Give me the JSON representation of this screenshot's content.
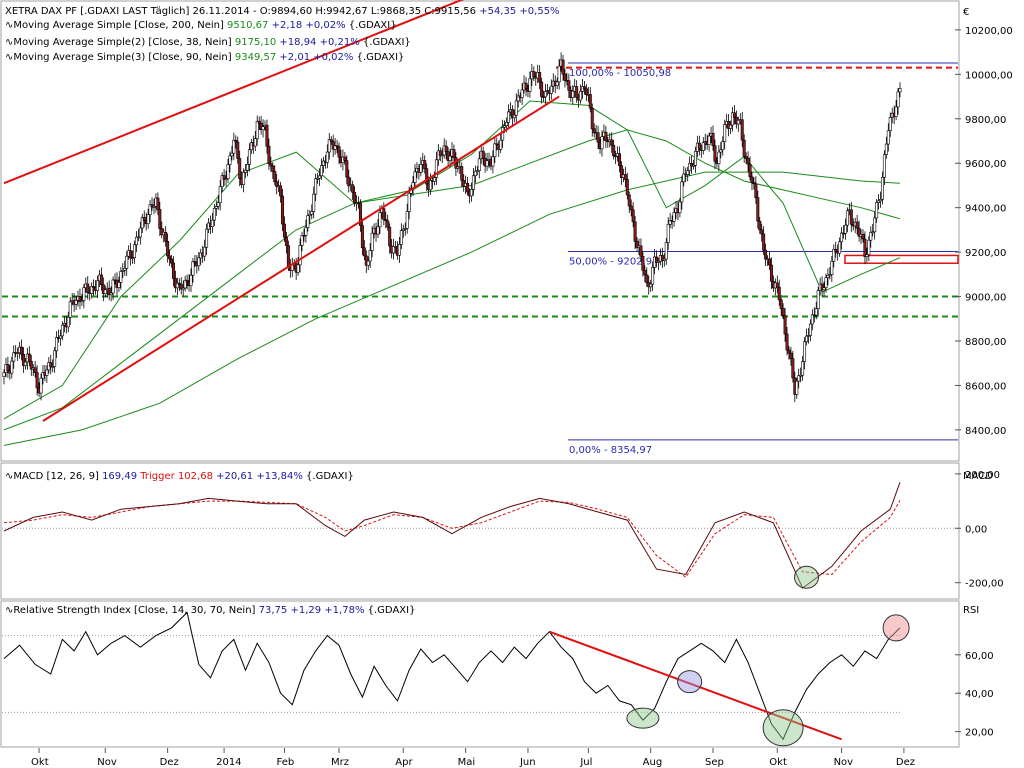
{
  "chart_data": [
    {
      "type": "candlestick",
      "panel": "price",
      "header": {
        "prefix": "XETRA DAX PF [.GDAXI LAST Täglich] 26.11.2014 - ",
        "open": "O:9894,60",
        "high": "H:9942,67",
        "low": "L:9868,35",
        "close": "C:9915,56",
        "change": "+54,35",
        "change_pct": "+0,55%"
      },
      "legend": [
        {
          "name": "Moving Average Simple [Close, 200, Nein]",
          "value": "9510,67",
          "change": "+2,18",
          "change_pct": "+0,02%",
          "symbol": "{.GDAXI}"
        },
        {
          "name": "Moving Average Simple(2) [Close, 38, Nein]",
          "value": "9175,10",
          "change": "+18,94",
          "change_pct": "+0,21%",
          "symbol": "{.GDAXI}"
        },
        {
          "name": "Moving Average Simple(3) [Close, 90, Nein]",
          "value": "9349,57",
          "change": "+2,01",
          "change_pct": "+0,02%",
          "symbol": "{.GDAXI}"
        }
      ],
      "currency_symbol": "€",
      "ylim": [
        8260,
        10330
      ],
      "yticks": [
        "8400,00",
        "8600,00",
        "8800,00",
        "9000,00",
        "9200,00",
        "9400,00",
        "9600,00",
        "9800,00",
        "10000,00",
        "10200,00"
      ],
      "ytick_values": [
        8400,
        8600,
        8800,
        9000,
        9200,
        9400,
        9600,
        9800,
        10000,
        10200
      ],
      "months": [
        "Okt",
        "Nov",
        "Dez",
        "2014",
        "Feb",
        "Mrz",
        "Apr",
        "Mai",
        "Jun",
        "Jul",
        "Aug",
        "Sep",
        "Okt",
        "Nov",
        "Dez"
      ],
      "fib_labels": [
        "100,00% - 10050,98",
        "50,00% - 9202,97",
        "0,00% - 8354,97"
      ],
      "fib_levels": [
        10050.98,
        9202.97,
        8354.97
      ],
      "close_series": [
        [
          0,
          8640
        ],
        [
          6,
          8750
        ],
        [
          12,
          8720
        ],
        [
          18,
          8600
        ],
        [
          24,
          8700
        ],
        [
          30,
          8860
        ],
        [
          36,
          8980
        ],
        [
          42,
          9020
        ],
        [
          48,
          9060
        ],
        [
          55,
          9020
        ],
        [
          61,
          9120
        ],
        [
          67,
          9230
        ],
        [
          73,
          9370
        ],
        [
          78,
          9420
        ],
        [
          84,
          9190
        ],
        [
          90,
          9020
        ],
        [
          96,
          9100
        ],
        [
          102,
          9210
        ],
        [
          108,
          9390
        ],
        [
          114,
          9560
        ],
        [
          118,
          9700
        ],
        [
          122,
          9520
        ],
        [
          126,
          9630
        ],
        [
          130,
          9780
        ],
        [
          134,
          9740
        ],
        [
          138,
          9540
        ],
        [
          142,
          9450
        ],
        [
          146,
          9120
        ],
        [
          150,
          9140
        ],
        [
          154,
          9280
        ],
        [
          158,
          9420
        ],
        [
          162,
          9560
        ],
        [
          166,
          9660
        ],
        [
          170,
          9690
        ],
        [
          174,
          9600
        ],
        [
          178,
          9500
        ],
        [
          182,
          9380
        ],
        [
          186,
          9130
        ],
        [
          190,
          9290
        ],
        [
          194,
          9390
        ],
        [
          198,
          9250
        ],
        [
          202,
          9190
        ],
        [
          206,
          9350
        ],
        [
          210,
          9520
        ],
        [
          214,
          9620
        ],
        [
          218,
          9480
        ],
        [
          222,
          9600
        ],
        [
          226,
          9670
        ],
        [
          230,
          9620
        ],
        [
          234,
          9580
        ],
        [
          238,
          9440
        ],
        [
          242,
          9570
        ],
        [
          246,
          9630
        ],
        [
          250,
          9600
        ],
        [
          254,
          9700
        ],
        [
          258,
          9790
        ],
        [
          262,
          9850
        ],
        [
          266,
          9920
        ],
        [
          270,
          9980
        ],
        [
          274,
          9990
        ],
        [
          278,
          9890
        ],
        [
          282,
          9960
        ],
        [
          286,
          10030
        ],
        [
          290,
          9940
        ],
        [
          294,
          9890
        ],
        [
          298,
          9960
        ],
        [
          302,
          9780
        ],
        [
          306,
          9680
        ],
        [
          310,
          9730
        ],
        [
          314,
          9620
        ],
        [
          318,
          9560
        ],
        [
          322,
          9360
        ],
        [
          326,
          9210
        ],
        [
          330,
          9040
        ],
        [
          334,
          9150
        ],
        [
          338,
          9170
        ],
        [
          342,
          9330
        ],
        [
          346,
          9410
        ],
        [
          350,
          9560
        ],
        [
          354,
          9620
        ],
        [
          358,
          9680
        ],
        [
          362,
          9720
        ],
        [
          366,
          9610
        ],
        [
          370,
          9740
        ],
        [
          374,
          9820
        ],
        [
          378,
          9760
        ],
        [
          382,
          9580
        ],
        [
          386,
          9440
        ],
        [
          390,
          9200
        ],
        [
          394,
          9100
        ],
        [
          398,
          8990
        ],
        [
          402,
          8800
        ],
        [
          406,
          8570
        ],
        [
          410,
          8720
        ],
        [
          414,
          8880
        ],
        [
          418,
          9000
        ],
        [
          422,
          9080
        ],
        [
          426,
          9170
        ],
        [
          430,
          9280
        ],
        [
          434,
          9370
        ],
        [
          438,
          9310
        ],
        [
          442,
          9200
        ],
        [
          446,
          9300
        ],
        [
          450,
          9480
        ],
        [
          454,
          9750
        ],
        [
          458,
          9880
        ],
        [
          460,
          9916
        ]
      ],
      "ma200": [
        [
          0,
          8330
        ],
        [
          40,
          8400
        ],
        [
          80,
          8520
        ],
        [
          120,
          8720
        ],
        [
          160,
          8900
        ],
        [
          200,
          9050
        ],
        [
          240,
          9200
        ],
        [
          280,
          9370
        ],
        [
          320,
          9480
        ],
        [
          360,
          9560
        ],
        [
          400,
          9560
        ],
        [
          440,
          9520
        ],
        [
          460,
          9510
        ]
      ],
      "ma90": [
        [
          0,
          8400
        ],
        [
          30,
          8500
        ],
        [
          60,
          8700
        ],
        [
          90,
          8900
        ],
        [
          120,
          9100
        ],
        [
          150,
          9300
        ],
        [
          180,
          9420
        ],
        [
          210,
          9460
        ],
        [
          240,
          9500
        ],
        [
          270,
          9600
        ],
        [
          300,
          9700
        ],
        [
          320,
          9750
        ],
        [
          340,
          9700
        ],
        [
          360,
          9600
        ],
        [
          380,
          9520
        ],
        [
          400,
          9480
        ],
        [
          420,
          9440
        ],
        [
          440,
          9400
        ],
        [
          460,
          9350
        ]
      ],
      "ma38": [
        [
          0,
          8450
        ],
        [
          30,
          8600
        ],
        [
          60,
          9000
        ],
        [
          90,
          9250
        ],
        [
          120,
          9550
        ],
        [
          150,
          9650
        ],
        [
          180,
          9420
        ],
        [
          210,
          9480
        ],
        [
          240,
          9640
        ],
        [
          270,
          9880
        ],
        [
          300,
          9860
        ],
        [
          320,
          9750
        ],
        [
          340,
          9400
        ],
        [
          360,
          9500
        ],
        [
          380,
          9630
        ],
        [
          400,
          9420
        ],
        [
          420,
          9020
        ],
        [
          440,
          9100
        ],
        [
          460,
          9175
        ]
      ],
      "trendlines": [
        {
          "from": [
            0,
            9510
          ],
          "to": [
            390,
            10880
          ]
        },
        {
          "from": [
            20,
            8440
          ],
          "to": [
            285,
            9900
          ]
        }
      ],
      "hlines": [
        9000,
        8910
      ]
    },
    {
      "type": "line",
      "panel": "macd",
      "title": "MACD [12, 26, 9]",
      "value": "169,49",
      "trigger_label": "Trigger",
      "trigger_value": "102,68",
      "change": "+20,61",
      "change_pct": "+13,84%",
      "symbol": "{.GDAXI}",
      "side_label": "MACD",
      "ylim": [
        -260,
        240
      ],
      "yticks": [
        "200,00",
        "0,00",
        "-200,00"
      ],
      "ytick_values": [
        200,
        0,
        -200
      ],
      "macd": [
        [
          0,
          -10
        ],
        [
          15,
          40
        ],
        [
          30,
          60
        ],
        [
          45,
          30
        ],
        [
          60,
          70
        ],
        [
          75,
          80
        ],
        [
          90,
          90
        ],
        [
          105,
          110
        ],
        [
          120,
          100
        ],
        [
          135,
          90
        ],
        [
          150,
          90
        ],
        [
          165,
          10
        ],
        [
          175,
          -30
        ],
        [
          185,
          30
        ],
        [
          200,
          60
        ],
        [
          215,
          40
        ],
        [
          230,
          -20
        ],
        [
          245,
          40
        ],
        [
          260,
          80
        ],
        [
          275,
          110
        ],
        [
          290,
          90
        ],
        [
          305,
          60
        ],
        [
          320,
          30
        ],
        [
          335,
          -150
        ],
        [
          350,
          -170
        ],
        [
          365,
          20
        ],
        [
          380,
          60
        ],
        [
          395,
          20
        ],
        [
          410,
          -220
        ],
        [
          425,
          -140
        ],
        [
          440,
          -10
        ],
        [
          455,
          70
        ],
        [
          460,
          169
        ]
      ],
      "trigger": [
        [
          0,
          20
        ],
        [
          15,
          30
        ],
        [
          30,
          50
        ],
        [
          45,
          40
        ],
        [
          60,
          60
        ],
        [
          75,
          80
        ],
        [
          90,
          90
        ],
        [
          105,
          100
        ],
        [
          120,
          100
        ],
        [
          135,
          95
        ],
        [
          150,
          90
        ],
        [
          165,
          40
        ],
        [
          175,
          -10
        ],
        [
          185,
          10
        ],
        [
          200,
          50
        ],
        [
          215,
          40
        ],
        [
          230,
          0
        ],
        [
          245,
          20
        ],
        [
          260,
          60
        ],
        [
          275,
          100
        ],
        [
          290,
          95
        ],
        [
          305,
          70
        ],
        [
          320,
          40
        ],
        [
          335,
          -100
        ],
        [
          350,
          -180
        ],
        [
          365,
          -20
        ],
        [
          380,
          50
        ],
        [
          395,
          40
        ],
        [
          410,
          -160
        ],
        [
          425,
          -170
        ],
        [
          440,
          -50
        ],
        [
          455,
          40
        ],
        [
          460,
          103
        ]
      ]
    },
    {
      "type": "line",
      "panel": "rsi",
      "title": "Relative Strength Index [Close, 14, 30, 70, Nein]",
      "value": "73,75",
      "change": "+1,29",
      "change_pct": "+1,78%",
      "symbol": "{.GDAXI}",
      "side_label": "RSI",
      "ylim": [
        12,
        88
      ],
      "yticks": [
        "60,00",
        "40,00",
        "20,00"
      ],
      "ytick_values": [
        60,
        40,
        20
      ],
      "rsi": [
        [
          0,
          58
        ],
        [
          8,
          65
        ],
        [
          16,
          55
        ],
        [
          24,
          50
        ],
        [
          30,
          68
        ],
        [
          36,
          62
        ],
        [
          42,
          72
        ],
        [
          48,
          60
        ],
        [
          55,
          66
        ],
        [
          62,
          70
        ],
        [
          70,
          64
        ],
        [
          78,
          70
        ],
        [
          86,
          74
        ],
        [
          94,
          82
        ],
        [
          100,
          55
        ],
        [
          106,
          48
        ],
        [
          112,
          62
        ],
        [
          118,
          68
        ],
        [
          124,
          52
        ],
        [
          130,
          66
        ],
        [
          136,
          56
        ],
        [
          142,
          40
        ],
        [
          148,
          34
        ],
        [
          154,
          52
        ],
        [
          160,
          62
        ],
        [
          166,
          70
        ],
        [
          172,
          65
        ],
        [
          178,
          50
        ],
        [
          184,
          38
        ],
        [
          190,
          54
        ],
        [
          196,
          44
        ],
        [
          202,
          36
        ],
        [
          208,
          52
        ],
        [
          214,
          63
        ],
        [
          220,
          56
        ],
        [
          226,
          60
        ],
        [
          232,
          53
        ],
        [
          238,
          46
        ],
        [
          244,
          56
        ],
        [
          250,
          62
        ],
        [
          256,
          56
        ],
        [
          262,
          64
        ],
        [
          268,
          58
        ],
        [
          274,
          66
        ],
        [
          280,
          72
        ],
        [
          286,
          64
        ],
        [
          292,
          58
        ],
        [
          298,
          46
        ],
        [
          304,
          40
        ],
        [
          310,
          44
        ],
        [
          316,
          36
        ],
        [
          322,
          34
        ],
        [
          328,
          26
        ],
        [
          334,
          32
        ],
        [
          340,
          46
        ],
        [
          346,
          58
        ],
        [
          352,
          62
        ],
        [
          358,
          66
        ],
        [
          364,
          62
        ],
        [
          370,
          56
        ],
        [
          376,
          68
        ],
        [
          382,
          56
        ],
        [
          388,
          40
        ],
        [
          394,
          24
        ],
        [
          400,
          16
        ],
        [
          406,
          30
        ],
        [
          412,
          42
        ],
        [
          418,
          50
        ],
        [
          424,
          56
        ],
        [
          430,
          60
        ],
        [
          436,
          54
        ],
        [
          442,
          62
        ],
        [
          448,
          58
        ],
        [
          454,
          68
        ],
        [
          460,
          74
        ]
      ],
      "trendline": {
        "from": [
          280,
          72
        ],
        "to": [
          430,
          16
        ]
      }
    }
  ]
}
